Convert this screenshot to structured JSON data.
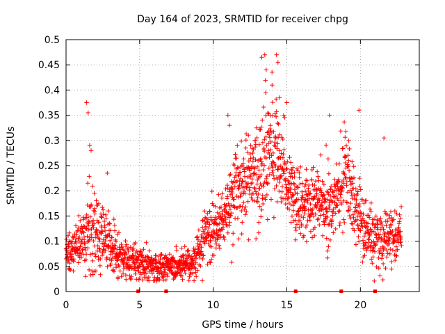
{
  "chart_data": {
    "type": "scatter",
    "title": "Day 164 of 2023, SRMTID for receiver chpg",
    "xlabel": "GPS time / hours",
    "ylabel": "SRMTID / TECUs",
    "xlim": [
      0,
      24
    ],
    "ylim": [
      0,
      0.5
    ],
    "x_ticks": [
      0,
      5,
      10,
      15,
      20
    ],
    "x_tick_labels": [
      "0",
      "5",
      "10",
      "15",
      "20"
    ],
    "y_ticks": [
      0,
      0.05,
      0.1,
      0.15,
      0.2,
      0.25,
      0.3,
      0.35,
      0.4,
      0.45,
      0.5
    ],
    "y_tick_labels": [
      "0",
      "0.05",
      "0.1",
      "0.15",
      "0.2",
      "0.25",
      "0.3",
      "0.35",
      "0.4",
      "0.45",
      "0.5"
    ],
    "grid": true,
    "marker": "+",
    "color": "#ff0000",
    "baseline_markers_x": [
      4.9,
      6.8,
      15.6,
      18.7,
      21.0
    ],
    "envelope": [
      {
        "t": 0.0,
        "mid": 0.07,
        "spread": 0.03
      },
      {
        "t": 1.0,
        "mid": 0.09,
        "spread": 0.04
      },
      {
        "t": 1.5,
        "mid": 0.12,
        "spread": 0.09
      },
      {
        "t": 2.5,
        "mid": 0.12,
        "spread": 0.06
      },
      {
        "t": 3.5,
        "mid": 0.07,
        "spread": 0.04
      },
      {
        "t": 5.0,
        "mid": 0.055,
        "spread": 0.03
      },
      {
        "t": 7.0,
        "mid": 0.045,
        "spread": 0.025
      },
      {
        "t": 8.5,
        "mid": 0.05,
        "spread": 0.03
      },
      {
        "t": 9.5,
        "mid": 0.11,
        "spread": 0.05
      },
      {
        "t": 10.5,
        "mid": 0.13,
        "spread": 0.05
      },
      {
        "t": 11.5,
        "mid": 0.2,
        "spread": 0.07
      },
      {
        "t": 13.0,
        "mid": 0.24,
        "spread": 0.09
      },
      {
        "t": 14.0,
        "mid": 0.28,
        "spread": 0.11
      },
      {
        "t": 15.0,
        "mid": 0.22,
        "spread": 0.07
      },
      {
        "t": 16.0,
        "mid": 0.17,
        "spread": 0.06
      },
      {
        "t": 17.0,
        "mid": 0.18,
        "spread": 0.07
      },
      {
        "t": 18.0,
        "mid": 0.16,
        "spread": 0.06
      },
      {
        "t": 19.0,
        "mid": 0.24,
        "spread": 0.08
      },
      {
        "t": 20.0,
        "mid": 0.14,
        "spread": 0.07
      },
      {
        "t": 21.0,
        "mid": 0.1,
        "spread": 0.05
      },
      {
        "t": 22.0,
        "mid": 0.11,
        "spread": 0.05
      },
      {
        "t": 22.8,
        "mid": 0.11,
        "spread": 0.04
      }
    ],
    "notable_points": [
      {
        "x": 1.4,
        "y": 0.375
      },
      {
        "x": 1.5,
        "y": 0.355
      },
      {
        "x": 1.6,
        "y": 0.29
      },
      {
        "x": 1.7,
        "y": 0.28
      },
      {
        "x": 2.8,
        "y": 0.235
      },
      {
        "x": 11.0,
        "y": 0.35
      },
      {
        "x": 11.1,
        "y": 0.33
      },
      {
        "x": 13.3,
        "y": 0.465
      },
      {
        "x": 13.5,
        "y": 0.47
      },
      {
        "x": 13.6,
        "y": 0.44
      },
      {
        "x": 14.3,
        "y": 0.47
      },
      {
        "x": 14.4,
        "y": 0.455
      },
      {
        "x": 14.0,
        "y": 0.41
      },
      {
        "x": 14.5,
        "y": 0.385
      },
      {
        "x": 15.0,
        "y": 0.375
      },
      {
        "x": 17.9,
        "y": 0.35
      },
      {
        "x": 19.9,
        "y": 0.36
      },
      {
        "x": 21.6,
        "y": 0.305
      }
    ],
    "sample_spacing_hours": 0.012,
    "seed": 164
  }
}
